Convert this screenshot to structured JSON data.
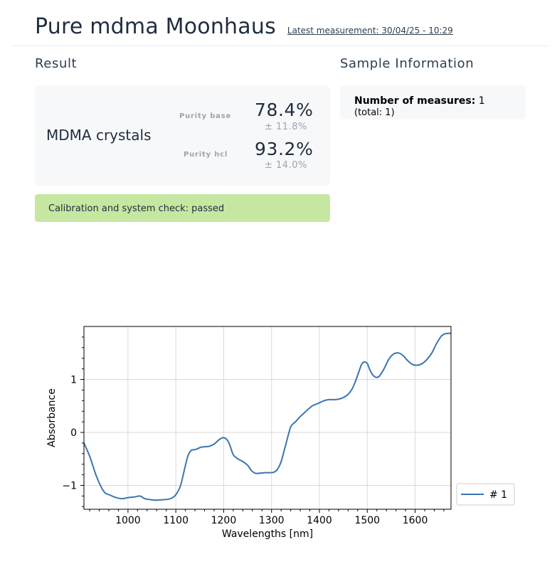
{
  "header": {
    "title": "Pure mdma Moonhaus",
    "latest_measurement": "Latest measurement: 30/04/25 - 10:29"
  },
  "result": {
    "section_title": "Result",
    "product": "MDMA crystals",
    "purity_base": {
      "label": "Purity base",
      "value": "78.4%",
      "error": "± 11.8%"
    },
    "purity_hcl": {
      "label": "Purity hcl",
      "value": "93.2%",
      "error": "± 14.0%"
    },
    "calibration": "Calibration and system check: passed",
    "calibration_color": "#c6e7a1"
  },
  "sample": {
    "section_title": "Sample Information",
    "measures_label": "Number of measures:",
    "measures_value": "1",
    "total": "(total: 1)"
  },
  "chart_data": {
    "type": "line",
    "xlabel": "Wavelengths [nm]",
    "ylabel": "Absorbance",
    "xlim": [
      908,
      1675
    ],
    "ylim": [
      -1.45,
      2.0
    ],
    "xticks": [
      "1000",
      "1100",
      "1200",
      "1300",
      "1400",
      "1500",
      "1600"
    ],
    "yticks": [
      "−1",
      "0",
      "1"
    ],
    "grid": true,
    "legend_position": "outside-right",
    "series": [
      {
        "name": "# 1",
        "color": "#3a76af",
        "x": [
          908,
          920,
          935,
          950,
          962,
          975,
          988,
          1000,
          1012,
          1025,
          1035,
          1048,
          1060,
          1072,
          1085,
          1095,
          1102,
          1110,
          1118,
          1125,
          1132,
          1142,
          1152,
          1160,
          1170,
          1180,
          1190,
          1198,
          1205,
          1212,
          1220,
          1230,
          1240,
          1250,
          1258,
          1266,
          1275,
          1285,
          1295,
          1305,
          1312,
          1320,
          1330,
          1340,
          1350,
          1360,
          1372,
          1385,
          1398,
          1410,
          1422,
          1435,
          1448,
          1460,
          1470,
          1480,
          1488,
          1494,
          1500,
          1506,
          1512,
          1518,
          1525,
          1535,
          1545,
          1555,
          1565,
          1575,
          1585,
          1595,
          1605,
          1615,
          1625,
          1635,
          1645,
          1655,
          1662,
          1668,
          1675
        ],
        "y": [
          -0.2,
          -0.45,
          -0.85,
          -1.12,
          -1.18,
          -1.23,
          -1.25,
          -1.23,
          -1.22,
          -1.2,
          -1.25,
          -1.27,
          -1.28,
          -1.27,
          -1.26,
          -1.22,
          -1.15,
          -1.0,
          -0.7,
          -0.45,
          -0.34,
          -0.32,
          -0.28,
          -0.27,
          -0.26,
          -0.22,
          -0.14,
          -0.1,
          -0.12,
          -0.22,
          -0.42,
          -0.5,
          -0.55,
          -0.62,
          -0.72,
          -0.77,
          -0.77,
          -0.76,
          -0.76,
          -0.75,
          -0.7,
          -0.55,
          -0.22,
          0.1,
          0.2,
          0.3,
          0.4,
          0.5,
          0.55,
          0.6,
          0.62,
          0.62,
          0.65,
          0.72,
          0.85,
          1.08,
          1.28,
          1.33,
          1.3,
          1.17,
          1.08,
          1.04,
          1.06,
          1.2,
          1.38,
          1.48,
          1.5,
          1.45,
          1.35,
          1.28,
          1.27,
          1.3,
          1.38,
          1.5,
          1.68,
          1.82,
          1.86,
          1.87,
          1.87
        ]
      }
    ]
  }
}
